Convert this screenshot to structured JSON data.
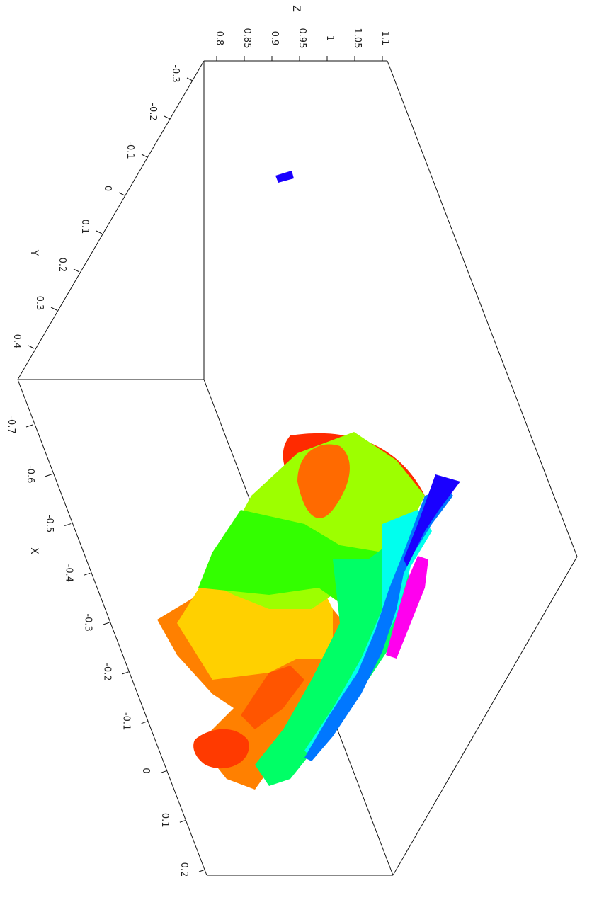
{
  "chart_data": {
    "type": "scatter",
    "projection": "3d",
    "axes": {
      "x": {
        "label": "X",
        "ticks": [
          "-0.7",
          "-0.6",
          "-0.5",
          "-0.4",
          "-0.3",
          "-0.2",
          "-0.1",
          "0",
          "0.1",
          "0.2"
        ],
        "range": [
          -0.75,
          0.2
        ]
      },
      "y": {
        "label": "Y",
        "ticks": [
          "-0.3",
          "-0.2",
          "-0.1",
          "0",
          "0.1",
          "0.2",
          "0.3",
          "0.4"
        ],
        "range": [
          -0.3,
          0.45
        ]
      },
      "z": {
        "label": "Z",
        "ticks": [
          "0.8",
          "0.85",
          "0.9",
          "0.95",
          "1",
          "1.05",
          "1.1"
        ],
        "range": [
          0.78,
          1.1
        ]
      }
    },
    "colormap": "hsv (color encodes Z)",
    "grid": false,
    "legend": "none",
    "point_cloud_regions": [
      {
        "color": "#ff2a00"
      },
      {
        "color": "#ff8000"
      },
      {
        "color": "#ffd000"
      },
      {
        "color": "#9dff00"
      },
      {
        "color": "#33ff00"
      },
      {
        "color": "#00ff66"
      },
      {
        "color": "#00ffee"
      },
      {
        "color": "#0077ff"
      },
      {
        "color": "#1a00ff"
      },
      {
        "color": "#ff00ee"
      }
    ]
  }
}
